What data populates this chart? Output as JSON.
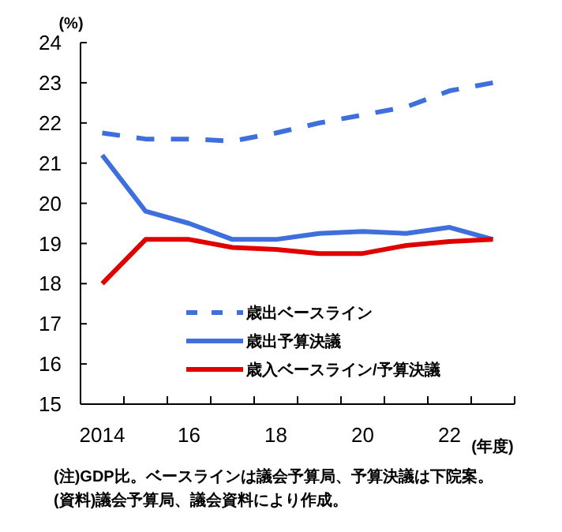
{
  "chart_data": {
    "type": "line",
    "categories": [
      "2014",
      null,
      "16",
      null,
      "18",
      null,
      "20",
      null,
      "22",
      null
    ],
    "ylabel": "(%)",
    "xlabel": "(年度)",
    "ylim": [
      15,
      24
    ],
    "yticks": [
      15,
      16,
      17,
      18,
      19,
      20,
      21,
      22,
      23,
      24
    ],
    "grid": false,
    "legend": "bottom",
    "series": [
      {
        "name": "歳出ベースライン",
        "color": "#3f6fdc",
        "line_style": "dashed",
        "values": [
          21.75,
          21.6,
          21.6,
          21.55,
          21.75,
          22.0,
          22.2,
          22.4,
          22.8,
          23.0
        ]
      },
      {
        "name": "歳出予算決議",
        "color": "#3f6fdc",
        "line_style": "solid",
        "values": [
          21.2,
          19.8,
          19.5,
          19.1,
          19.1,
          19.25,
          19.3,
          19.25,
          19.4,
          19.1
        ]
      },
      {
        "name": "歳入ベースライン/予算決議",
        "color": "#e00000",
        "line_style": "solid",
        "values": [
          18.0,
          19.1,
          19.1,
          18.9,
          18.85,
          18.75,
          18.75,
          18.95,
          19.05,
          19.1
        ]
      }
    ],
    "annotations": [
      "(注)GDP比。ベースラインは議会予算局、予算決議は下院案。",
      "(資料)議会予算局、議会資料により作成。"
    ]
  }
}
